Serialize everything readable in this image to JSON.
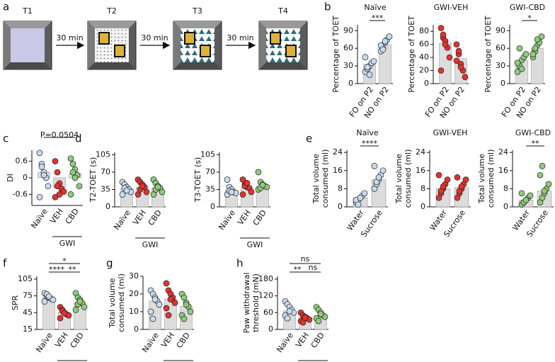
{
  "diagram": {
    "panel_label": "a",
    "steps": [
      "T1",
      "T2",
      "T3",
      "T4"
    ],
    "intervals": [
      "30 min",
      "30 min",
      "30 min"
    ]
  },
  "chart_data": [
    {
      "type": "bar",
      "panel_label": "b",
      "title": "Naïve",
      "ylabel": [
        "Percentage of TOET"
      ],
      "categories": [
        "FO on P2",
        "NO on P2"
      ],
      "colors": [
        "#c7dbf0",
        "#c7dbf0"
      ],
      "values": [
        33,
        66
      ],
      "points": [
        [
          20,
          25,
          30,
          35,
          38,
          45,
          28,
          15
        ],
        [
          55,
          60,
          70,
          75,
          80,
          65,
          58,
          72
        ]
      ],
      "ylim": [
        0,
        100
      ],
      "yticks": [
        0,
        30,
        60,
        90
      ],
      "brackets": [
        {
          "label": "***",
          "between": [
            "FO on P2",
            "NO on P2"
          ]
        }
      ]
    },
    {
      "type": "bar",
      "title": "GWI-VEH",
      "ylabel": [
        "Percentage of TOET"
      ],
      "categories": [
        "FO on P2",
        "NO on P2"
      ],
      "colors": [
        "#e2332e",
        "#e2332e"
      ],
      "values": [
        62,
        38
      ],
      "points": [
        [
          85,
          70,
          65,
          55,
          40,
          20,
          75,
          60
        ],
        [
          60,
          45,
          30,
          20,
          10,
          35,
          50,
          25
        ]
      ],
      "ylim": [
        0,
        90
      ],
      "yticks": [
        0,
        20,
        40,
        60,
        80
      ],
      "brackets": []
    },
    {
      "type": "bar",
      "title": "GWI-CBD",
      "ylabel": [
        "Percentage of TOET"
      ],
      "categories": [
        "FO on P2",
        "NO on P2"
      ],
      "colors": [
        "#8fcb7b",
        "#8fcb7b"
      ],
      "values": [
        40,
        60
      ],
      "points": [
        [
          20,
          30,
          40,
          45,
          50,
          35,
          60,
          25
        ],
        [
          45,
          55,
          65,
          70,
          80,
          50,
          60,
          75
        ]
      ],
      "ylim": [
        0,
        100
      ],
      "yticks": [
        0,
        30,
        60,
        90
      ],
      "brackets": [
        {
          "label": "*",
          "between": [
            "FO on P2",
            "NO on P2"
          ]
        }
      ]
    },
    {
      "type": "bar",
      "panel_label": "c",
      "ylabel": [
        "DI"
      ],
      "categories": [
        "Naïve",
        "VEH",
        "CBD"
      ],
      "colors": [
        "#c7dbf0",
        "#e2332e",
        "#8fcb7b"
      ],
      "values": [
        0.2,
        -0.35,
        0.15
      ],
      "points": [
        [
          0.9,
          0.5,
          0.2,
          0,
          -0.3,
          -0.7,
          0.4,
          0.1
        ],
        [
          0.6,
          0.2,
          -0.2,
          -0.4,
          -0.5,
          -0.7,
          -0.3,
          -0.6
        ],
        [
          0.7,
          0.5,
          0.3,
          0.1,
          -0.3,
          -0.6,
          0.2,
          0
        ]
      ],
      "ylim": [
        -1,
        1
      ],
      "yticks": [
        -0.6,
        0,
        0.6
      ],
      "brackets": [
        {
          "label": "P=0.0504",
          "between": [
            "Naïve",
            "CBD"
          ]
        }
      ],
      "group": {
        "label": "GWI",
        "members": [
          "VEH",
          "CBD"
        ]
      }
    },
    {
      "type": "bar",
      "panel_label": "d",
      "ylabel": [
        "T2-TOET (s)"
      ],
      "categories": [
        "Naïve",
        "VEH",
        "CBD"
      ],
      "colors": [
        "#c7dbf0",
        "#e2332e",
        "#8fcb7b"
      ],
      "values": [
        37,
        40,
        38
      ],
      "points": [
        [
          50,
          45,
          40,
          35,
          30,
          25,
          38,
          33
        ],
        [
          55,
          50,
          45,
          40,
          30,
          25,
          35,
          42
        ],
        [
          55,
          48,
          42,
          38,
          30,
          25,
          35,
          40
        ]
      ],
      "ylim": [
        0,
        110
      ],
      "yticks": [
        0,
        35,
        70,
        105
      ],
      "brackets": [],
      "group": {
        "label": "GWI",
        "members": [
          "VEH",
          "CBD"
        ]
      }
    },
    {
      "type": "bar",
      "ylabel": [
        "T3-TOET (s)"
      ],
      "categories": [
        "Naïve",
        "VEH",
        "CBD"
      ],
      "colors": [
        "#c7dbf0",
        "#e2332e",
        "#8fcb7b"
      ],
      "values": [
        33,
        40,
        42
      ],
      "points": [
        [
          55,
          40,
          35,
          30,
          28,
          25,
          32,
          30
        ],
        [
          55,
          45,
          40,
          38,
          30,
          25,
          42,
          48
        ],
        [
          70,
          50,
          45,
          42,
          40,
          35,
          38,
          44
        ]
      ],
      "ylim": [
        0,
        110
      ],
      "yticks": [
        0,
        35,
        70,
        105
      ],
      "brackets": [],
      "group": {
        "label": "GWI",
        "members": [
          "VEH",
          "CBD"
        ]
      }
    },
    {
      "type": "bar",
      "panel_label": "e",
      "title": "Naïve",
      "ylabel": [
        "Total volume",
        "consumed (ml)"
      ],
      "categories": [
        "Water",
        "Sucrose"
      ],
      "colors": [
        "#c7dbf0",
        "#c7dbf0"
      ],
      "values": [
        4,
        12
      ],
      "points": [
        [
          2,
          3,
          4,
          5,
          6,
          3,
          1,
          4
        ],
        [
          8,
          10,
          12,
          14,
          16,
          18,
          11,
          13
        ]
      ],
      "ylim": [
        0,
        25
      ],
      "yticks": [
        0,
        8,
        16,
        24
      ],
      "brackets": [
        {
          "label": "****",
          "between": [
            "Water",
            "Sucrose"
          ]
        }
      ]
    },
    {
      "type": "bar",
      "title": "GWI-VEH",
      "ylabel": [
        "Total volume",
        "consumed (ml)"
      ],
      "categories": [
        "Water",
        "Sucrose"
      ],
      "colors": [
        "#e2332e",
        "#e2332e"
      ],
      "values": [
        8,
        8.5
      ],
      "points": [
        [
          4,
          6,
          8,
          10,
          12,
          14,
          7,
          9
        ],
        [
          4,
          6,
          8,
          10,
          12,
          13,
          7,
          9
        ]
      ],
      "ylim": [
        0,
        25
      ],
      "yticks": [
        0,
        8,
        16,
        24
      ],
      "brackets": []
    },
    {
      "type": "bar",
      "title": "GWI-CBD",
      "ylabel": [
        "Total volume",
        "consumed (ml)"
      ],
      "categories": [
        "Water",
        "Sucrose"
      ],
      "colors": [
        "#8fcb7b",
        "#8fcb7b"
      ],
      "values": [
        3,
        7
      ],
      "points": [
        [
          1,
          2,
          3,
          4,
          5,
          6,
          2,
          3
        ],
        [
          2,
          4,
          6,
          8,
          10,
          14,
          18,
          7
        ]
      ],
      "ylim": [
        0,
        25
      ],
      "yticks": [
        0,
        8,
        16,
        24
      ],
      "brackets": [
        {
          "label": "**",
          "between": [
            "Water",
            "Sucrose"
          ]
        }
      ]
    },
    {
      "type": "bar",
      "panel_label": "f",
      "ylabel": [
        "SPR"
      ],
      "categories": [
        "Naïve",
        "VEH",
        "CBD"
      ],
      "colors": [
        "#c7dbf0",
        "#e2332e",
        "#8fcb7b"
      ],
      "values": [
        72,
        45,
        63
      ],
      "points": [
        [
          80,
          75,
          72,
          70,
          68,
          65,
          78,
          74
        ],
        [
          55,
          50,
          45,
          42,
          40,
          35,
          48,
          44
        ],
        [
          80,
          72,
          68,
          62,
          55,
          50,
          60,
          65
        ]
      ],
      "ylim": [
        15,
        110
      ],
      "yticks": [
        15,
        45,
        75,
        105
      ],
      "brackets": [
        {
          "label": "****",
          "between": [
            "Naïve",
            "VEH"
          ]
        },
        {
          "label": "**",
          "between": [
            "VEH",
            "CBD"
          ]
        },
        {
          "label": "*",
          "between": [
            "Naïve",
            "CBD"
          ]
        }
      ],
      "group": {
        "label": "GWI",
        "members": [
          "VEH",
          "CBD"
        ]
      }
    },
    {
      "type": "bar",
      "panel_label": "g",
      "ylabel": [
        "Total volume",
        "consumed (ml)"
      ],
      "categories": [
        "Naïve",
        "VEH",
        "CBD"
      ],
      "colors": [
        "#c7dbf0",
        "#e2332e",
        "#8fcb7b"
      ],
      "values": [
        16,
        17,
        13
      ],
      "points": [
        [
          22,
          20,
          18,
          16,
          14,
          10,
          6,
          17
        ],
        [
          26,
          22,
          20,
          18,
          15,
          12,
          8,
          17
        ],
        [
          20,
          18,
          15,
          13,
          10,
          8,
          6,
          14
        ]
      ],
      "ylim": [
        0,
        30
      ],
      "yticks": [
        0,
        10,
        20,
        30
      ],
      "brackets": [],
      "group": {
        "label": "GWI",
        "members": [
          "VEH",
          "CBD"
        ]
      }
    },
    {
      "type": "bar",
      "panel_label": "h",
      "ylabel": [
        "Paw withdrawal",
        "threshold (mN)"
      ],
      "categories": [
        "Naïve",
        "VEH",
        "CBD"
      ],
      "colors": [
        "#c7dbf0",
        "#e2332e",
        "#8fcb7b"
      ],
      "values": [
        67,
        41,
        50
      ],
      "points": [
        [
          100,
          90,
          80,
          70,
          60,
          50,
          40,
          65
        ],
        [
          60,
          50,
          45,
          40,
          35,
          30,
          25,
          42
        ],
        [
          80,
          70,
          60,
          50,
          45,
          40,
          30,
          55
        ]
      ],
      "ylim": [
        0,
        190
      ],
      "yticks": [
        0,
        60,
        120,
        180
      ],
      "brackets": [
        {
          "label": "**",
          "between": [
            "Naïve",
            "VEH"
          ]
        },
        {
          "label": "ns",
          "between": [
            "VEH",
            "CBD"
          ]
        },
        {
          "label": "ns",
          "between": [
            "Naïve",
            "CBD"
          ]
        }
      ],
      "group": {
        "label": "GWI",
        "members": [
          "VEH",
          "CBD"
        ]
      }
    }
  ]
}
